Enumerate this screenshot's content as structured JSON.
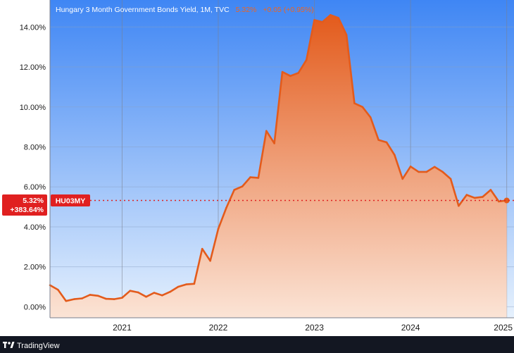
{
  "legend": {
    "title": "Hungary 3 Month Government Bonds Yield, 1M, TVC",
    "last": "5.32%",
    "change": "+0.05 (+0.95%)",
    "title_color": "#ffffff",
    "change_color": "#f0641e"
  },
  "badges": {
    "price": "5.32%",
    "percent_change": "+383.64%",
    "symbol": "HU03MY",
    "price_bg": "#e02020",
    "symbol_bg": "#e02020"
  },
  "footer": {
    "brand": "TradingView",
    "logo_icon": "tradingview-logo-icon"
  },
  "colors": {
    "sky_top": "#3f86f4",
    "sky_bottom": "#e6f1fd",
    "line": "#e35b1c",
    "fill_top": "#e35b1c",
    "fill_bottom": "#fbe4d6",
    "last_price_line": "#e02020",
    "footer_bg": "#131722",
    "axis_bg": "#ffffff"
  },
  "chart_data": {
    "type": "area",
    "title": "Hungary 3 Month Government Bonds Yield, 1M, TVC",
    "xlabel": "",
    "ylabel": "",
    "x_ticks": [
      "2021",
      "2022",
      "2023",
      "2024",
      "2025"
    ],
    "y_ticks": [
      "0.00%",
      "2.00%",
      "4.00%",
      "6.00%",
      "8.00%",
      "10.00%",
      "12.00%",
      "14.00%"
    ],
    "ylim": [
      -0.55,
      15.35
    ],
    "xlim": [
      "2020-04",
      "2025-01"
    ],
    "grid": true,
    "legend": "top-left",
    "last_value": 5.32,
    "series": [
      {
        "name": "HU03MY",
        "x": [
          "2020-04",
          "2020-05",
          "2020-06",
          "2020-07",
          "2020-08",
          "2020-09",
          "2020-10",
          "2020-11",
          "2020-12",
          "2021-01",
          "2021-02",
          "2021-03",
          "2021-04",
          "2021-05",
          "2021-06",
          "2021-07",
          "2021-08",
          "2021-09",
          "2021-10",
          "2021-11",
          "2021-12",
          "2022-01",
          "2022-02",
          "2022-03",
          "2022-04",
          "2022-05",
          "2022-06",
          "2022-07",
          "2022-08",
          "2022-09",
          "2022-10",
          "2022-11",
          "2022-12",
          "2023-01",
          "2023-02",
          "2023-03",
          "2023-04",
          "2023-05",
          "2023-06",
          "2023-07",
          "2023-08",
          "2023-09",
          "2023-10",
          "2023-11",
          "2023-12",
          "2024-01",
          "2024-02",
          "2024-03",
          "2024-04",
          "2024-05",
          "2024-06",
          "2024-07",
          "2024-08",
          "2024-09",
          "2024-10",
          "2024-11",
          "2024-12",
          "2025-01"
        ],
        "values": [
          1.08,
          0.85,
          0.29,
          0.38,
          0.42,
          0.6,
          0.55,
          0.4,
          0.38,
          0.45,
          0.8,
          0.72,
          0.5,
          0.7,
          0.57,
          0.75,
          1.0,
          1.12,
          1.15,
          2.9,
          2.3,
          3.9,
          4.95,
          5.85,
          6.02,
          6.48,
          6.45,
          8.8,
          8.18,
          11.75,
          11.55,
          11.7,
          12.35,
          14.35,
          14.25,
          14.6,
          14.45,
          13.6,
          10.18,
          10.0,
          9.48,
          8.35,
          8.23,
          7.6,
          6.4,
          7.02,
          6.75,
          6.75,
          7.0,
          6.75,
          6.4,
          5.05,
          5.6,
          5.45,
          5.5,
          5.85,
          5.27,
          5.32
        ]
      }
    ]
  }
}
